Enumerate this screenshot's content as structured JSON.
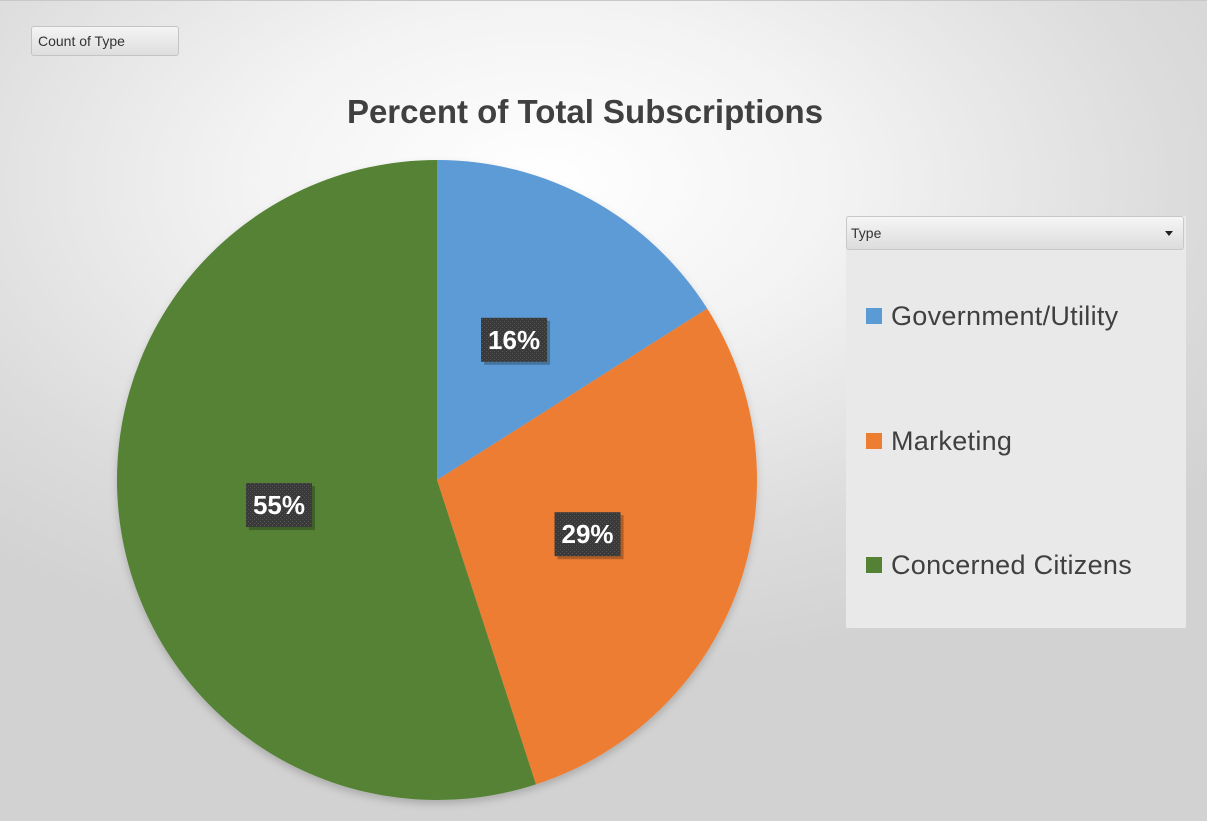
{
  "field_button": {
    "label": "Count of Type"
  },
  "legend": {
    "filter_label": "Type",
    "items": [
      {
        "label": "Government/Utility",
        "color": "#5b9bd5"
      },
      {
        "label": "Marketing",
        "color": "#ed7d31"
      },
      {
        "label": "Concerned Citizens",
        "color": "#548235"
      }
    ]
  },
  "chart_data": {
    "type": "pie",
    "title": "Percent of Total Subscriptions",
    "categories": [
      "Government/Utility",
      "Marketing",
      "Concerned Citizens"
    ],
    "values": [
      16,
      29,
      55
    ],
    "labels": [
      "16%",
      "29%",
      "55%"
    ],
    "colors": [
      "#5b9bd5",
      "#ed7d31",
      "#548235"
    ],
    "start_angle_deg": 0,
    "direction": "clockwise",
    "legend_position": "right",
    "legend_title": "Type"
  }
}
